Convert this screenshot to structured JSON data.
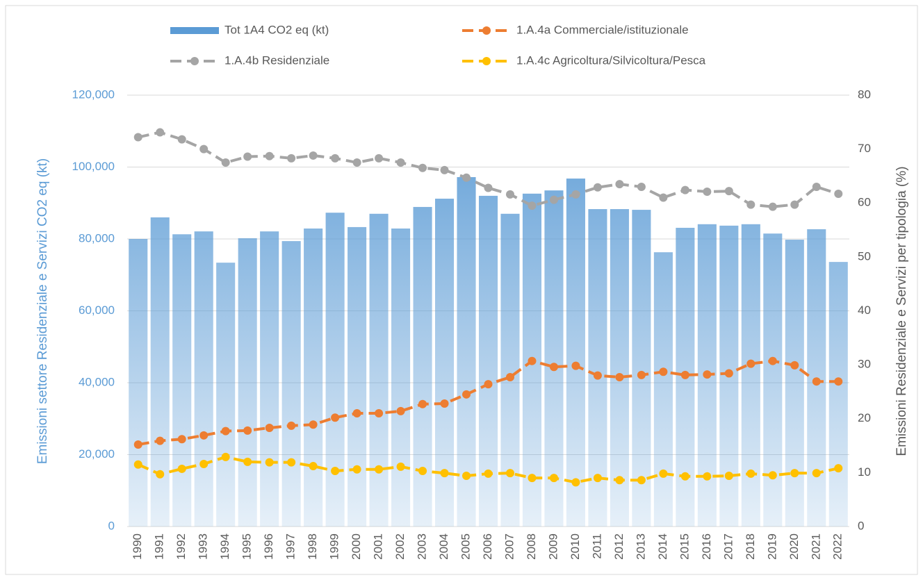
{
  "chart_data": {
    "type": "combo",
    "categories": [
      "1990",
      "1991",
      "1992",
      "1993",
      "1994",
      "1995",
      "1996",
      "1997",
      "1998",
      "1999",
      "2000",
      "2001",
      "2002",
      "2003",
      "2004",
      "2005",
      "2006",
      "2007",
      "2008",
      "2009",
      "2010",
      "2011",
      "2012",
      "2013",
      "2014",
      "2015",
      "2016",
      "2017",
      "2018",
      "2019",
      "2020",
      "2021",
      "2022"
    ],
    "series": [
      {
        "name": "Tot 1A4 CO2 eq (kt)",
        "type": "bar",
        "color": "#5b9bd5",
        "values": [
          80000,
          86000,
          81300,
          82100,
          73400,
          80200,
          82100,
          79400,
          82900,
          87300,
          83300,
          87000,
          82900,
          88900,
          91200,
          97200,
          92000,
          87000,
          92600,
          93500,
          96800,
          88300,
          88300,
          88100,
          76300,
          83100,
          84100,
          83700,
          84100,
          81500,
          79800,
          82700,
          73600
        ]
      },
      {
        "name": "1.A.4a Commerciale/istituzionale",
        "type": "line",
        "axis": "y2",
        "color": "#ed7d31",
        "values": [
          15.2,
          15.9,
          16.2,
          16.9,
          17.7,
          17.8,
          18.3,
          18.7,
          18.9,
          20.2,
          21.0,
          21.0,
          21.4,
          22.7,
          22.8,
          24.5,
          26.4,
          27.7,
          30.7,
          29.6,
          29.8,
          28.0,
          27.7,
          28.1,
          28.7,
          28.1,
          28.2,
          28.4,
          30.2,
          30.7,
          29.9,
          26.9,
          26.9
        ]
      },
      {
        "name": "1.A.4b Residenziale",
        "type": "line",
        "axis": "y2",
        "color": "#a5a5a5",
        "values": [
          72.2,
          73.1,
          71.8,
          70.0,
          67.5,
          68.6,
          68.7,
          68.3,
          68.8,
          68.3,
          67.5,
          68.3,
          67.5,
          66.5,
          66.1,
          64.7,
          62.8,
          61.6,
          59.5,
          60.6,
          61.6,
          62.9,
          63.5,
          63.0,
          61.0,
          62.4,
          62.1,
          62.2,
          59.7,
          59.3,
          59.7,
          63.0,
          61.7
        ]
      },
      {
        "name": "1.A.4c Agricoltura/Silvicoltura/Pesca",
        "type": "line",
        "axis": "y2",
        "color": "#ffc000",
        "values": [
          11.5,
          9.7,
          10.7,
          11.6,
          12.9,
          12.0,
          11.9,
          11.9,
          11.2,
          10.3,
          10.6,
          10.6,
          11.1,
          10.3,
          9.9,
          9.4,
          9.8,
          9.9,
          9.0,
          9.0,
          8.2,
          9.0,
          8.6,
          8.6,
          9.8,
          9.3,
          9.3,
          9.4,
          9.8,
          9.5,
          9.9,
          9.9,
          10.8
        ]
      }
    ],
    "y_label": "Emissioni settore  Residenziale e Servizi CO2 eq (kt)",
    "y2_label": "Emissioni  Residenziale e Servizi per tipologia  (%)",
    "ylim": [
      0,
      120000
    ],
    "yticks": [
      0,
      {
        "value": 20000,
        "label": "20,000"
      },
      {
        "value": 40000,
        "label": "40,000"
      },
      {
        "value": 60000,
        "label": "60,000"
      },
      {
        "value": 80000,
        "label": "80,000"
      },
      {
        "value": 100000,
        "label": "100,000"
      },
      {
        "value": 120000,
        "label": "120,000"
      }
    ],
    "y2lim": [
      0,
      80
    ],
    "y2ticks": [
      0,
      10,
      20,
      30,
      40,
      50,
      60,
      70,
      80
    ],
    "grid": true
  }
}
